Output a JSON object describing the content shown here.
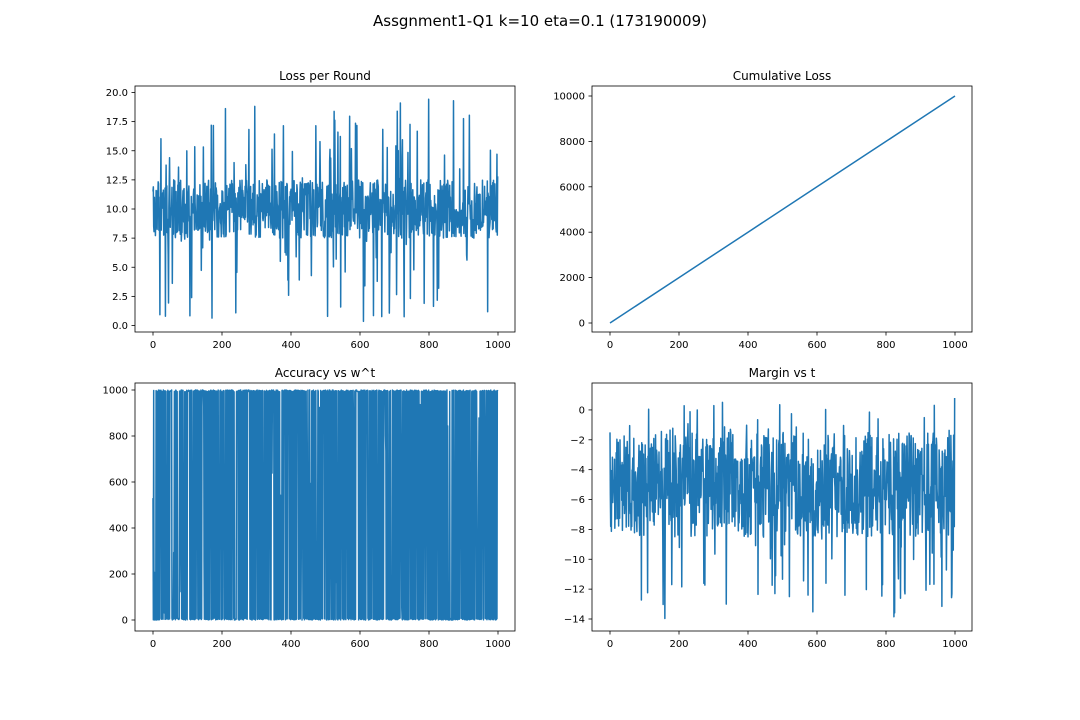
{
  "figure": {
    "suptitle": "Assgnment1-Q1 k=10 eta=0.1         (173190009)"
  },
  "colors": {
    "line": "#1f77b4",
    "axes": "#000000",
    "background": "#ffffff"
  },
  "chart_data": [
    {
      "type": "line",
      "title": "Loss per Round",
      "xlabel": "",
      "ylabel": "",
      "grid": false,
      "xlim": [
        0,
        1000
      ],
      "ylim": [
        0,
        20
      ],
      "xticks": [
        0,
        200,
        400,
        600,
        800,
        1000
      ],
      "xtick_labels": [
        "0",
        "200",
        "400",
        "600",
        "800",
        "1000"
      ],
      "yticks": [
        0,
        2.5,
        5,
        7.5,
        10,
        12.5,
        15,
        17.5,
        20
      ],
      "ytick_labels": [
        "0.0",
        "2.5",
        "5.0",
        "7.5",
        "10.0",
        "12.5",
        "15.0",
        "17.5",
        "20.0"
      ],
      "series": [
        {
          "kind": "noisy",
          "n_points": 1000,
          "center": 10.0,
          "core_spread": 2.5,
          "min": 0.3,
          "max": 19.6,
          "start_value": 11.5,
          "end_value": 12.8
        }
      ]
    },
    {
      "type": "line",
      "title": "Cumulative Loss",
      "xlabel": "",
      "ylabel": "",
      "grid": false,
      "xlim": [
        0,
        1000
      ],
      "ylim": [
        0,
        10000
      ],
      "xticks": [
        0,
        200,
        400,
        600,
        800,
        1000
      ],
      "xtick_labels": [
        "0",
        "200",
        "400",
        "600",
        "800",
        "1000"
      ],
      "yticks": [
        0,
        2000,
        4000,
        6000,
        8000,
        10000
      ],
      "ytick_labels": [
        "0",
        "2000",
        "4000",
        "6000",
        "8000",
        "10000"
      ],
      "series": [
        {
          "kind": "linear",
          "x": [
            0,
            200,
            400,
            600,
            800,
            1000
          ],
          "y": [
            0,
            2000,
            4000,
            6000,
            8000,
            10000
          ]
        }
      ]
    },
    {
      "type": "line",
      "title": "Accuracy vs w^t",
      "xlabel": "",
      "ylabel": "",
      "grid": false,
      "xlim": [
        0,
        1000
      ],
      "ylim": [
        0,
        1000
      ],
      "xticks": [
        0,
        200,
        400,
        600,
        800,
        1000
      ],
      "xtick_labels": [
        "0",
        "200",
        "400",
        "600",
        "800",
        "1000"
      ],
      "yticks": [
        0,
        200,
        400,
        600,
        800,
        1000
      ],
      "ytick_labels": [
        "0",
        "200",
        "400",
        "600",
        "800",
        "1000"
      ],
      "series": [
        {
          "kind": "binary-oscillation",
          "n_points": 1000,
          "min": 0,
          "max": 1000,
          "start_value": 530,
          "end_value": 1000
        }
      ]
    },
    {
      "type": "line",
      "title": "Margin vs t",
      "xlabel": "",
      "ylabel": "",
      "grid": false,
      "xlim": [
        0,
        1000
      ],
      "ylim": [
        -14,
        1
      ],
      "xticks": [
        0,
        200,
        400,
        600,
        800,
        1000
      ],
      "xtick_labels": [
        "0",
        "200",
        "400",
        "600",
        "800",
        "1000"
      ],
      "yticks": [
        -14,
        -12,
        -10,
        -8,
        -6,
        -4,
        -2,
        0
      ],
      "ytick_labels": [
        "−14",
        "−12",
        "−10",
        "−8",
        "−6",
        "−4",
        "−2",
        "0"
      ],
      "series": [
        {
          "kind": "noisy",
          "n_points": 1000,
          "center": -5.0,
          "core_spread": 3.5,
          "min": -14.0,
          "max": 1.0,
          "start_value": -1.5,
          "end_value": 0.8
        }
      ]
    }
  ]
}
